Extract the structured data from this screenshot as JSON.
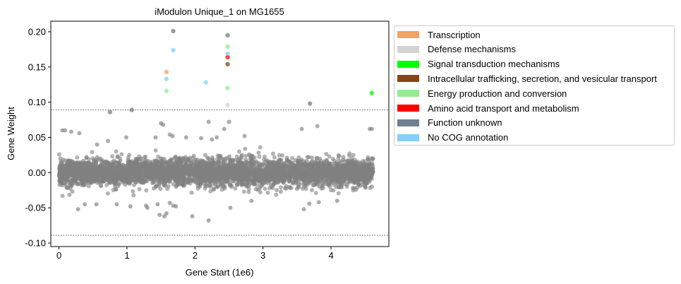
{
  "chart_data": {
    "type": "scatter",
    "title": "iModulon Unique_1 on MG1655",
    "xlabel": "Gene Start (1e6)",
    "ylabel": "Gene Weight",
    "xlim": [
      -0.12,
      4.85
    ],
    "ylim": [
      -0.105,
      0.215
    ],
    "xticks": [
      0,
      1,
      2,
      3,
      4
    ],
    "xtick_labels": [
      "0",
      "1",
      "2",
      "3",
      "4"
    ],
    "yticks": [
      -0.1,
      -0.05,
      0.0,
      0.05,
      0.1,
      0.15,
      0.2
    ],
    "ytick_labels": [
      "-0.10",
      "-0.05",
      "0.00",
      "0.05",
      "0.10",
      "0.15",
      "0.20"
    ],
    "thresholds": [
      0.089,
      -0.089
    ],
    "grid": false,
    "legend_position": "outside-right",
    "background_genes": {
      "color": "#808080",
      "count": 4300,
      "x_range": [
        0.0,
        4.62
      ],
      "y_core_range": [
        -0.025,
        0.025
      ],
      "note_outliers": [
        {
          "x": 0.05,
          "y": 0.06
        },
        {
          "x": 0.09,
          "y": 0.06
        },
        {
          "x": 0.18,
          "y": 0.058
        },
        {
          "x": 0.3,
          "y": 0.056
        },
        {
          "x": 0.56,
          "y": 0.04
        },
        {
          "x": 0.72,
          "y": 0.045
        },
        {
          "x": 0.99,
          "y": 0.05
        },
        {
          "x": 1.42,
          "y": 0.05
        },
        {
          "x": 1.5,
          "y": 0.07
        },
        {
          "x": 1.53,
          "y": 0.068
        },
        {
          "x": 1.63,
          "y": 0.054
        },
        {
          "x": 1.67,
          "y": 0.052
        },
        {
          "x": 1.87,
          "y": 0.05
        },
        {
          "x": 2.09,
          "y": 0.049
        },
        {
          "x": 2.2,
          "y": 0.072
        },
        {
          "x": 2.25,
          "y": 0.047
        },
        {
          "x": 2.32,
          "y": 0.05
        },
        {
          "x": 2.43,
          "y": 0.062
        },
        {
          "x": 2.5,
          "y": 0.072
        },
        {
          "x": 2.73,
          "y": 0.052
        },
        {
          "x": 3.57,
          "y": 0.062
        },
        {
          "x": 3.8,
          "y": 0.066
        },
        {
          "x": 4.57,
          "y": 0.062
        },
        {
          "x": 4.6,
          "y": 0.062
        },
        {
          "x": 0.28,
          "y": -0.052
        },
        {
          "x": 0.38,
          "y": -0.045
        },
        {
          "x": 0.55,
          "y": -0.045
        },
        {
          "x": 0.85,
          "y": -0.045
        },
        {
          "x": 1.05,
          "y": -0.048
        },
        {
          "x": 1.28,
          "y": -0.047
        },
        {
          "x": 1.3,
          "y": -0.05
        },
        {
          "x": 1.45,
          "y": -0.045
        },
        {
          "x": 1.48,
          "y": -0.06
        },
        {
          "x": 1.55,
          "y": -0.062
        },
        {
          "x": 1.58,
          "y": -0.058
        },
        {
          "x": 1.63,
          "y": -0.043
        },
        {
          "x": 1.68,
          "y": -0.047
        },
        {
          "x": 1.72,
          "y": -0.048
        },
        {
          "x": 1.96,
          "y": -0.062
        },
        {
          "x": 2.2,
          "y": -0.068
        },
        {
          "x": 2.52,
          "y": -0.05
        },
        {
          "x": 2.83,
          "y": -0.04
        },
        {
          "x": 3.6,
          "y": -0.052
        },
        {
          "x": 3.68,
          "y": -0.044
        },
        {
          "x": 3.82,
          "y": -0.042
        },
        {
          "x": 4.09,
          "y": -0.04
        }
      ]
    },
    "series": [
      {
        "name": "Transcription",
        "color": "#f4a460",
        "points": [
          {
            "x": 1.58,
            "y": 0.143
          }
        ]
      },
      {
        "name": "Defense mechanisms",
        "color": "#d3d3d3",
        "points": [
          {
            "x": 2.48,
            "y": 0.096
          }
        ]
      },
      {
        "name": "Signal transduction mechanisms",
        "color": "#00ff00",
        "points": [
          {
            "x": 4.6,
            "y": 0.113
          }
        ]
      },
      {
        "name": "Intracellular trafficking, secretion, and vesicular transport",
        "color": "#8b4513",
        "points": [
          {
            "x": 2.48,
            "y": 0.154
          }
        ]
      },
      {
        "name": "Energy production and conversion",
        "color": "#90ee90",
        "points": [
          {
            "x": 1.58,
            "y": 0.116
          },
          {
            "x": 2.48,
            "y": 0.179
          },
          {
            "x": 2.48,
            "y": 0.12
          }
        ]
      },
      {
        "name": "Amino acid transport and metabolism",
        "color": "#ff0000",
        "points": [
          {
            "x": 2.48,
            "y": 0.164
          }
        ]
      },
      {
        "name": "Function unknown",
        "color": "#708090",
        "points": [
          {
            "x": 1.68,
            "y": 0.201
          },
          {
            "x": 2.48,
            "y": 0.195
          },
          {
            "x": 0.75,
            "y": 0.086
          },
          {
            "x": 1.07,
            "y": 0.089
          },
          {
            "x": 3.69,
            "y": 0.098
          }
        ]
      },
      {
        "name": "No COG annotation",
        "color": "#87cefa",
        "points": [
          {
            "x": 1.68,
            "y": 0.174
          },
          {
            "x": 1.58,
            "y": 0.133
          },
          {
            "x": 2.16,
            "y": 0.128
          },
          {
            "x": 2.48,
            "y": 0.169
          }
        ]
      }
    ]
  }
}
